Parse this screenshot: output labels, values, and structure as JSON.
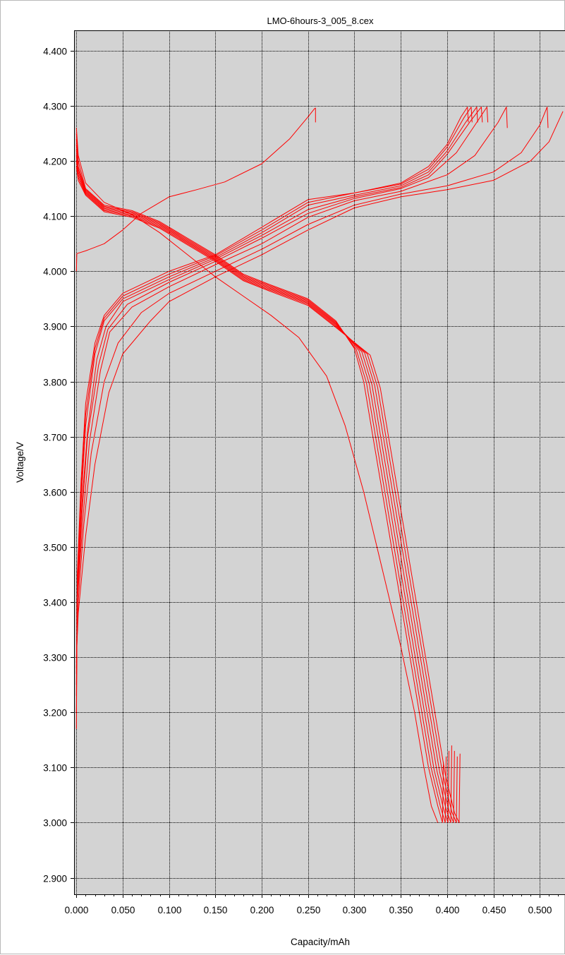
{
  "chart_data": {
    "type": "line",
    "title": "LMO-6hours-3_005_8.cex",
    "xlabel": "Capacity/mAh",
    "ylabel": "Voltage/V",
    "xlim": [
      -0.0025,
      0.528
    ],
    "ylim": [
      2.87,
      4.437
    ],
    "x_ticks": [
      "0.000",
      "0.050",
      "0.100",
      "0.150",
      "0.200",
      "0.250",
      "0.300",
      "0.350",
      "0.400",
      "0.450",
      "0.500"
    ],
    "y_ticks": [
      "4.400",
      "4.300",
      "4.200",
      "4.100",
      "4.000",
      "3.900",
      "3.800",
      "3.700",
      "3.600",
      "3.500",
      "3.400",
      "3.300",
      "3.200",
      "3.100",
      "3.000",
      "2.900"
    ],
    "grid": true,
    "plot_background": "#d3d3d3",
    "series_color": "#ff0000",
    "series": [
      {
        "kind": "charge",
        "x": [
          0.0,
          0.0005,
          0.01,
          0.03,
          0.05,
          0.07,
          0.1,
          0.13,
          0.16,
          0.2,
          0.23,
          0.25,
          0.257,
          0.258,
          0.258
        ],
        "y": [
          4.0,
          4.032,
          4.037,
          4.05,
          4.075,
          4.105,
          4.135,
          4.148,
          4.162,
          4.195,
          4.24,
          4.28,
          4.295,
          4.296,
          4.27
        ]
      },
      {
        "kind": "discharge",
        "x": [
          0.0,
          0.002,
          0.01,
          0.03,
          0.06,
          0.09,
          0.12,
          0.15,
          0.18,
          0.21,
          0.24,
          0.27,
          0.29,
          0.31,
          0.33,
          0.35,
          0.365,
          0.375,
          0.383,
          0.39
        ],
        "y": [
          4.26,
          4.21,
          4.16,
          4.125,
          4.103,
          4.07,
          4.03,
          3.99,
          3.955,
          3.92,
          3.88,
          3.81,
          3.72,
          3.6,
          3.46,
          3.32,
          3.2,
          3.1,
          3.03,
          3.0
        ]
      },
      {
        "kind": "charge",
        "x": [
          0.0,
          0.001,
          0.005,
          0.01,
          0.02,
          0.03,
          0.05,
          0.1,
          0.15,
          0.2,
          0.25,
          0.3,
          0.35,
          0.38,
          0.4,
          0.415,
          0.422,
          0.423
        ],
        "y": [
          3.17,
          3.45,
          3.62,
          3.76,
          3.87,
          3.92,
          3.96,
          4.0,
          4.03,
          4.08,
          4.13,
          4.142,
          4.16,
          4.19,
          4.23,
          4.28,
          4.298,
          4.27
        ]
      },
      {
        "kind": "charge",
        "x": [
          0.0,
          0.001,
          0.005,
          0.01,
          0.02,
          0.03,
          0.05,
          0.1,
          0.15,
          0.2,
          0.25,
          0.3,
          0.35,
          0.38,
          0.4,
          0.418,
          0.426,
          0.427
        ],
        "y": [
          3.2,
          3.45,
          3.6,
          3.74,
          3.86,
          3.915,
          3.955,
          3.995,
          4.028,
          4.075,
          4.125,
          4.142,
          4.158,
          4.185,
          4.225,
          4.278,
          4.298,
          4.27
        ]
      },
      {
        "kind": "charge",
        "x": [
          0.0,
          0.001,
          0.005,
          0.01,
          0.02,
          0.03,
          0.05,
          0.1,
          0.15,
          0.2,
          0.25,
          0.3,
          0.35,
          0.38,
          0.4,
          0.42,
          0.432,
          0.433
        ],
        "y": [
          3.23,
          3.42,
          3.58,
          3.72,
          3.85,
          3.91,
          3.95,
          3.99,
          4.025,
          4.07,
          4.12,
          4.138,
          4.155,
          4.18,
          4.218,
          4.27,
          4.298,
          4.27
        ]
      },
      {
        "kind": "charge",
        "x": [
          0.0,
          0.001,
          0.006,
          0.012,
          0.022,
          0.032,
          0.05,
          0.1,
          0.15,
          0.2,
          0.25,
          0.3,
          0.35,
          0.38,
          0.4,
          0.425,
          0.437,
          0.438
        ],
        "y": [
          3.25,
          3.42,
          3.58,
          3.71,
          3.84,
          3.9,
          3.945,
          3.985,
          4.022,
          4.065,
          4.112,
          4.135,
          4.152,
          4.175,
          4.212,
          4.272,
          4.298,
          4.27
        ]
      },
      {
        "kind": "charge",
        "x": [
          0.0,
          0.001,
          0.006,
          0.012,
          0.024,
          0.034,
          0.055,
          0.1,
          0.15,
          0.2,
          0.25,
          0.3,
          0.35,
          0.38,
          0.41,
          0.43,
          0.443,
          0.444
        ],
        "y": [
          3.27,
          3.4,
          3.56,
          3.7,
          3.83,
          3.895,
          3.94,
          3.98,
          4.018,
          4.06,
          4.105,
          4.132,
          4.15,
          4.17,
          4.215,
          4.265,
          4.298,
          4.27
        ]
      },
      {
        "kind": "charge",
        "x": [
          0.0,
          0.001,
          0.007,
          0.014,
          0.026,
          0.036,
          0.06,
          0.1,
          0.15,
          0.2,
          0.25,
          0.3,
          0.35,
          0.4,
          0.43,
          0.455,
          0.464,
          0.465
        ],
        "y": [
          3.28,
          3.4,
          3.55,
          3.69,
          3.82,
          3.89,
          3.935,
          3.972,
          4.012,
          4.05,
          4.098,
          4.128,
          4.145,
          4.175,
          4.21,
          4.27,
          4.298,
          4.26
        ]
      },
      {
        "kind": "charge",
        "x": [
          0.0,
          0.002,
          0.008,
          0.016,
          0.03,
          0.045,
          0.07,
          0.1,
          0.15,
          0.2,
          0.25,
          0.3,
          0.35,
          0.4,
          0.45,
          0.48,
          0.5,
          0.508,
          0.509
        ],
        "y": [
          3.29,
          3.4,
          3.54,
          3.67,
          3.8,
          3.87,
          3.925,
          3.96,
          4.0,
          4.04,
          4.085,
          4.12,
          4.14,
          4.155,
          4.18,
          4.215,
          4.265,
          4.298,
          4.26
        ]
      },
      {
        "kind": "charge",
        "x": [
          0.0,
          0.002,
          0.01,
          0.02,
          0.035,
          0.05,
          0.08,
          0.1,
          0.15,
          0.2,
          0.25,
          0.3,
          0.35,
          0.4,
          0.45,
          0.49,
          0.51,
          0.525
        ],
        "y": [
          3.3,
          3.38,
          3.52,
          3.65,
          3.78,
          3.85,
          3.91,
          3.945,
          3.99,
          4.03,
          4.075,
          4.115,
          4.135,
          4.148,
          4.165,
          4.2,
          4.235,
          4.29
        ]
      },
      {
        "kind": "discharge",
        "x": [
          0.0,
          0.002,
          0.01,
          0.03,
          0.06,
          0.09,
          0.12,
          0.15,
          0.18,
          0.21,
          0.25,
          0.28,
          0.3,
          0.31,
          0.32,
          0.33,
          0.34,
          0.36,
          0.38,
          0.39,
          0.395,
          0.396
        ],
        "y": [
          4.25,
          4.2,
          4.15,
          4.12,
          4.11,
          4.09,
          4.06,
          4.03,
          3.995,
          3.975,
          3.95,
          3.91,
          3.86,
          3.8,
          3.7,
          3.6,
          3.5,
          3.3,
          3.1,
          3.03,
          3.0,
          3.11
        ]
      },
      {
        "kind": "discharge",
        "x": [
          0.0,
          0.002,
          0.01,
          0.03,
          0.06,
          0.09,
          0.12,
          0.15,
          0.18,
          0.21,
          0.25,
          0.28,
          0.302,
          0.313,
          0.323,
          0.333,
          0.343,
          0.363,
          0.383,
          0.393,
          0.398,
          0.399
        ],
        "y": [
          4.24,
          4.19,
          4.148,
          4.118,
          4.108,
          4.088,
          4.058,
          4.028,
          3.993,
          3.973,
          3.948,
          3.908,
          3.858,
          3.798,
          3.698,
          3.598,
          3.498,
          3.298,
          3.098,
          3.028,
          3.0,
          3.12
        ]
      },
      {
        "kind": "discharge",
        "x": [
          0.0,
          0.002,
          0.01,
          0.03,
          0.06,
          0.09,
          0.12,
          0.15,
          0.18,
          0.21,
          0.25,
          0.28,
          0.305,
          0.316,
          0.326,
          0.336,
          0.346,
          0.366,
          0.386,
          0.396,
          0.401,
          0.402
        ],
        "y": [
          4.23,
          4.185,
          4.146,
          4.116,
          4.106,
          4.086,
          4.056,
          4.026,
          3.991,
          3.971,
          3.946,
          3.906,
          3.856,
          3.796,
          3.696,
          3.596,
          3.496,
          3.296,
          3.096,
          3.026,
          3.0,
          3.13
        ]
      },
      {
        "kind": "discharge",
        "x": [
          0.0,
          0.002,
          0.01,
          0.03,
          0.06,
          0.09,
          0.12,
          0.15,
          0.18,
          0.21,
          0.25,
          0.28,
          0.308,
          0.319,
          0.329,
          0.339,
          0.349,
          0.369,
          0.389,
          0.399,
          0.404,
          0.405
        ],
        "y": [
          4.22,
          4.18,
          4.144,
          4.114,
          4.104,
          4.084,
          4.054,
          4.024,
          3.989,
          3.969,
          3.944,
          3.904,
          3.854,
          3.794,
          3.694,
          3.594,
          3.494,
          3.294,
          3.094,
          3.024,
          3.0,
          3.14
        ]
      },
      {
        "kind": "discharge",
        "x": [
          0.0,
          0.002,
          0.01,
          0.03,
          0.06,
          0.09,
          0.12,
          0.15,
          0.18,
          0.21,
          0.25,
          0.28,
          0.311,
          0.322,
          0.332,
          0.342,
          0.352,
          0.372,
          0.392,
          0.402,
          0.407,
          0.408
        ],
        "y": [
          4.21,
          4.175,
          4.142,
          4.112,
          4.102,
          4.082,
          4.052,
          4.022,
          3.987,
          3.967,
          3.942,
          3.902,
          3.852,
          3.792,
          3.692,
          3.592,
          3.492,
          3.292,
          3.092,
          3.022,
          3.0,
          3.13
        ]
      },
      {
        "kind": "discharge",
        "x": [
          0.0,
          0.002,
          0.01,
          0.03,
          0.06,
          0.09,
          0.12,
          0.15,
          0.18,
          0.21,
          0.25,
          0.28,
          0.314,
          0.325,
          0.335,
          0.345,
          0.355,
          0.375,
          0.395,
          0.405,
          0.41,
          0.411
        ],
        "y": [
          4.2,
          4.17,
          4.14,
          4.11,
          4.1,
          4.08,
          4.05,
          4.02,
          3.985,
          3.965,
          3.94,
          3.9,
          3.85,
          3.79,
          3.69,
          3.59,
          3.49,
          3.29,
          3.09,
          3.02,
          3.0,
          3.12
        ]
      },
      {
        "kind": "discharge",
        "x": [
          0.0,
          0.002,
          0.01,
          0.03,
          0.06,
          0.09,
          0.12,
          0.15,
          0.18,
          0.21,
          0.25,
          0.28,
          0.317,
          0.328,
          0.338,
          0.348,
          0.358,
          0.378,
          0.398,
          0.408,
          0.413,
          0.414
        ],
        "y": [
          4.19,
          4.165,
          4.138,
          4.108,
          4.098,
          4.078,
          4.048,
          4.018,
          3.983,
          3.963,
          3.938,
          3.898,
          3.848,
          3.788,
          3.688,
          3.588,
          3.488,
          3.288,
          3.088,
          3.018,
          3.0,
          3.125
        ]
      }
    ]
  }
}
